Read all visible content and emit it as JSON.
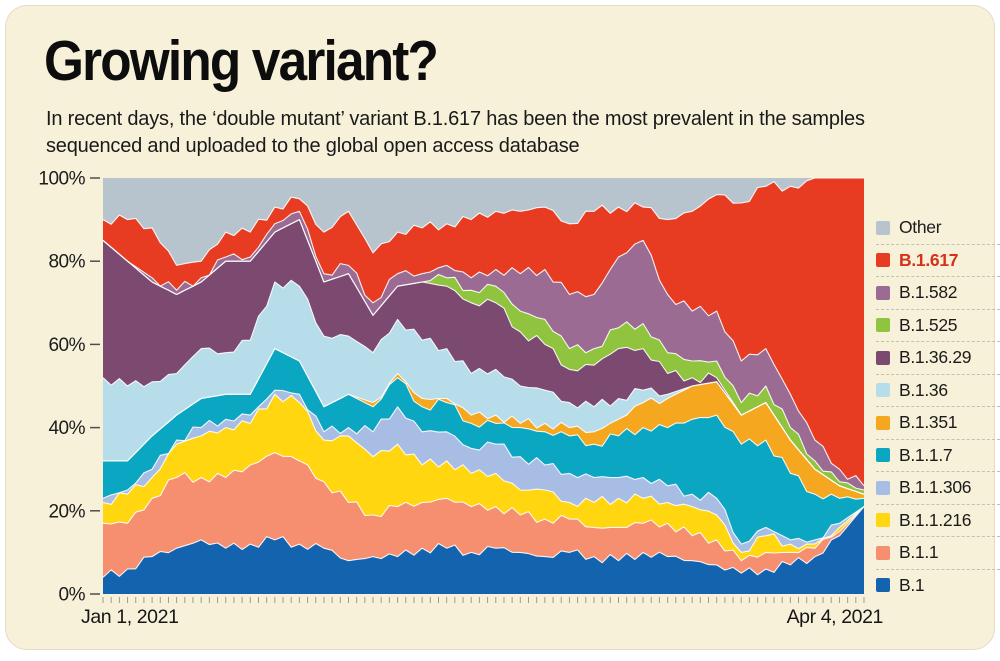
{
  "card": {
    "title": "Growing variant?",
    "subtitle_line1": "In recent days, the ‘double mutant’ variant B.1.617 has been the most prevalent in the samples",
    "subtitle_line2": "sequenced and uploaded to the global open access database"
  },
  "chart_data": {
    "type": "area",
    "stacked": true,
    "unit": "percent share of sequenced samples",
    "title": "Growing variant?",
    "x_start_label": "Jan 1, 2021",
    "x_end_label": "Apr 4, 2021",
    "sample_interval_days": 3,
    "x_tick_count": 94,
    "ylim": [
      0,
      100
    ],
    "y_ticks": [
      "0%",
      "20%",
      "40%",
      "60%",
      "80%",
      "100%"
    ],
    "y_tick_values": [
      0,
      20,
      40,
      60,
      80,
      100
    ],
    "grid": false,
    "legend_position": "right",
    "legend_order": "top of stack listed first",
    "highlight_series": "B.1.617",
    "highlight_color": "#d93018",
    "series": [
      {
        "name": "B.1",
        "color": "#1463af",
        "values": [
          4,
          6,
          9,
          11,
          13,
          11,
          12,
          13,
          12,
          11,
          8,
          9,
          9,
          11,
          11,
          10,
          11,
          10,
          9,
          10,
          9,
          8,
          10,
          9,
          8,
          7,
          5,
          6,
          7,
          9,
          14,
          21
        ]
      },
      {
        "name": "B.1.1",
        "color": "#f58f70",
        "values": [
          13,
          11,
          14,
          17,
          15,
          17,
          19,
          21,
          20,
          16,
          14,
          10,
          12,
          11,
          12,
          11,
          10,
          9,
          9,
          8,
          7,
          8,
          7,
          8,
          6,
          6,
          3,
          4,
          3,
          2,
          1,
          0
        ]
      },
      {
        "name": "B.1.1.216",
        "color": "#ffd60f",
        "values": [
          5,
          7,
          5,
          8,
          10,
          12,
          10,
          14,
          14,
          10,
          16,
          14,
          15,
          9,
          9,
          8,
          8,
          6,
          7,
          4,
          6,
          7,
          6,
          5,
          7,
          6,
          2,
          4,
          2,
          1,
          1,
          0
        ]
      },
      {
        "name": "B.1.1.306",
        "color": "#a8bde4",
        "values": [
          1,
          1,
          2,
          1,
          2,
          2,
          2,
          1,
          2,
          2,
          2,
          6,
          9,
          8,
          7,
          6,
          7,
          8,
          6,
          7,
          6,
          5,
          5,
          4,
          3,
          4,
          2,
          2,
          1,
          1,
          1,
          0
        ]
      },
      {
        "name": "B.1.1.7",
        "color": "#0ba6c1",
        "values": [
          9,
          7,
          8,
          6,
          7,
          6,
          5,
          10,
          8,
          6,
          8,
          6,
          7,
          6,
          7,
          6,
          5,
          7,
          8,
          9,
          8,
          10,
          12,
          14,
          18,
          20,
          24,
          21,
          16,
          11,
          6,
          2
        ]
      },
      {
        "name": "B.1.351",
        "color": "#f4a71f",
        "values": [
          0,
          0,
          0,
          0,
          0,
          0,
          0,
          0,
          0,
          0,
          0,
          1,
          1,
          2,
          1,
          2,
          2,
          1,
          2,
          2,
          3,
          4,
          6,
          7,
          8,
          8,
          7,
          9,
          8,
          6,
          3,
          1
        ]
      },
      {
        "name": "B.1.36",
        "color": "#b7ddeb",
        "values": [
          20,
          18,
          13,
          10,
          12,
          10,
          13,
          16,
          18,
          17,
          14,
          12,
          13,
          14,
          12,
          10,
          11,
          9,
          8,
          6,
          6,
          5,
          3,
          1,
          0,
          0,
          0,
          0,
          0,
          0,
          0,
          0
        ]
      },
      {
        "name": "B.1.36.29",
        "color": "#7c4a70",
        "values": [
          33,
          30,
          24,
          19,
          16,
          22,
          19,
          12,
          16,
          13,
          15,
          9,
          8,
          14,
          15,
          17,
          16,
          13,
          11,
          8,
          10,
          12,
          10,
          5,
          2,
          1,
          0,
          0,
          0,
          0,
          0,
          0
        ]
      },
      {
        "name": "B.1.525",
        "color": "#90c33e",
        "values": [
          0,
          0,
          0,
          0,
          0,
          0,
          0,
          0,
          0,
          0,
          0,
          0,
          0,
          0,
          2,
          3,
          4,
          5,
          6,
          5,
          4,
          5,
          6,
          5,
          4,
          4,
          3,
          4,
          3,
          2,
          1,
          1
        ]
      },
      {
        "name": "B.1.582",
        "color": "#9c6b93",
        "values": [
          0,
          0,
          1,
          1,
          1,
          1,
          1,
          2,
          2,
          2,
          2,
          3,
          3,
          2,
          3,
          3,
          4,
          9,
          12,
          13,
          13,
          17,
          20,
          14,
          12,
          12,
          10,
          9,
          8,
          5,
          3,
          1
        ]
      },
      {
        "name": "B.1.617",
        "color": "#e83c22",
        "values": [
          5,
          10,
          12,
          6,
          4,
          6,
          6,
          4,
          3,
          10,
          13,
          12,
          10,
          11,
          10,
          14,
          14,
          15,
          15,
          17,
          20,
          12,
          8,
          18,
          24,
          28,
          38,
          39,
          50,
          63,
          70,
          74
        ]
      },
      {
        "name": "Other",
        "color": "#b7c4cd",
        "values": [
          10,
          10,
          12,
          21,
          20,
          13,
          13,
          7,
          5,
          13,
          8,
          18,
          13,
          12,
          11,
          10,
          8,
          8,
          7,
          11,
          8,
          7,
          7,
          10,
          8,
          4,
          6,
          2,
          2,
          0,
          0,
          0
        ]
      }
    ]
  },
  "axis": {
    "tick_color": "#9a9a9a",
    "label_color": "#1c1c1c"
  }
}
